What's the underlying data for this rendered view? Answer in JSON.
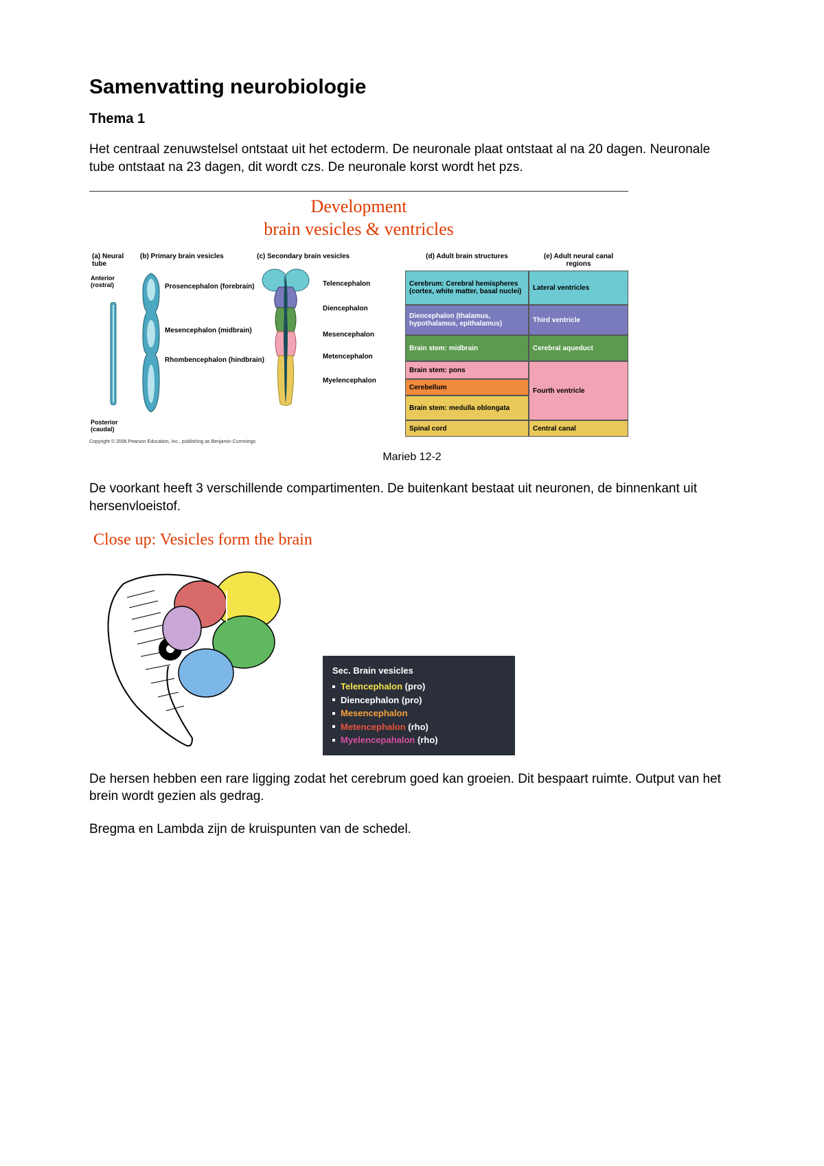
{
  "title": "Samenvatting neurobiologie",
  "subtitle": "Thema 1",
  "paragraph1": "Het centraal zenuwstelsel ontstaat uit het ectoderm. De neuronale plaat ontstaat al na 20 dagen. Neuronale tube ontstaat na 23 dagen, dit wordt czs. De neuronale korst wordt het pzs.",
  "fig1": {
    "heading_line1": "Development",
    "heading_line2": "brain vesicles & ventricles",
    "headers": {
      "a": "(a) Neural tube",
      "b": "(b) Primary brain vesicles",
      "c": "(c) Secondary brain vesicles",
      "d": "(d) Adult brain structures",
      "e": "(e) Adult neural canal regions"
    },
    "anterior": "Anterior (rostral)",
    "posterior": "Posterior (caudal)",
    "primary": {
      "pros": "Prosencephalon (forebrain)",
      "mes": "Mesencephalon (midbrain)",
      "rhomb": "Rhombencephalon (hindbrain)"
    },
    "secondary": {
      "tel": "Telencephalon",
      "di": "Diencephalon",
      "mes": "Mesencephalon",
      "met": "Metencephalon",
      "myel": "Myelencephalon"
    },
    "adult": {
      "tel": "Cerebrum: Cerebral hemispheres (cortex, white matter, basal nuclei)",
      "di": "Diencephalon (thalamus, hypothalamus, epithalamus)",
      "mes": "Brain stem: midbrain",
      "met_pons": "Brain stem: pons",
      "met_cereb": "Cerebellum",
      "myel": "Brain stem: medulla oblongata",
      "spinal": "Spinal cord"
    },
    "canal": {
      "lat": "Lateral ventricles",
      "third": "Third ventricle",
      "aq": "Cerebral aqueduct",
      "fourth": "Fourth ventricle",
      "central": "Central canal"
    },
    "colors": {
      "tel": "#6dcad2",
      "di": "#7a7bbd",
      "mes": "#5c9a4f",
      "met": "#f2a4b4",
      "cereb": "#f08a3c",
      "myel": "#e8c95a",
      "spinal": "#e8c95a",
      "tube_fill": "#4ca7c2",
      "tube_stroke": "#2a6d7a"
    },
    "copyright": "Copyright © 2006 Pearson Education, Inc., publishing as Benjamin Cummings",
    "caption": "Marieb 12-2"
  },
  "paragraph2": "De voorkant heeft 3 verschillende compartimenten. De buitenkant bestaat uit neuronen, de binnenkant uit hersenvloeistof.",
  "fig2": {
    "heading": "Close up: Vesicles form the brain",
    "legend_title": "Sec. Brain vesicles",
    "items": [
      {
        "label": "Telencephalon",
        "suffix": " (pro)",
        "color": "#f5e24a"
      },
      {
        "label": "Diencephalon",
        "suffix": " (pro)",
        "color": "#ffffff"
      },
      {
        "label": "Mesencephalon",
        "suffix": "",
        "color": "#f7a03c"
      },
      {
        "label": "Metencephalon",
        "suffix": " (rho)",
        "color": "#e8503a"
      },
      {
        "label": "Myelencepahalon",
        "suffix": " (rho)",
        "color": "#d94fa0"
      }
    ],
    "embryo_colors": {
      "tel": "#f3e44a",
      "di": "#61b861",
      "mes": "#d86a6a",
      "met": "#7db7e8",
      "myel": "#c9a7d6",
      "outline": "#000000"
    }
  },
  "paragraph3": "De hersen hebben een rare ligging zodat het cerebrum goed kan groeien. Dit bespaart ruimte. Output van het brein wordt gezien als gedrag.",
  "paragraph4": "Bregma en Lambda zijn de kruispunten van de schedel."
}
